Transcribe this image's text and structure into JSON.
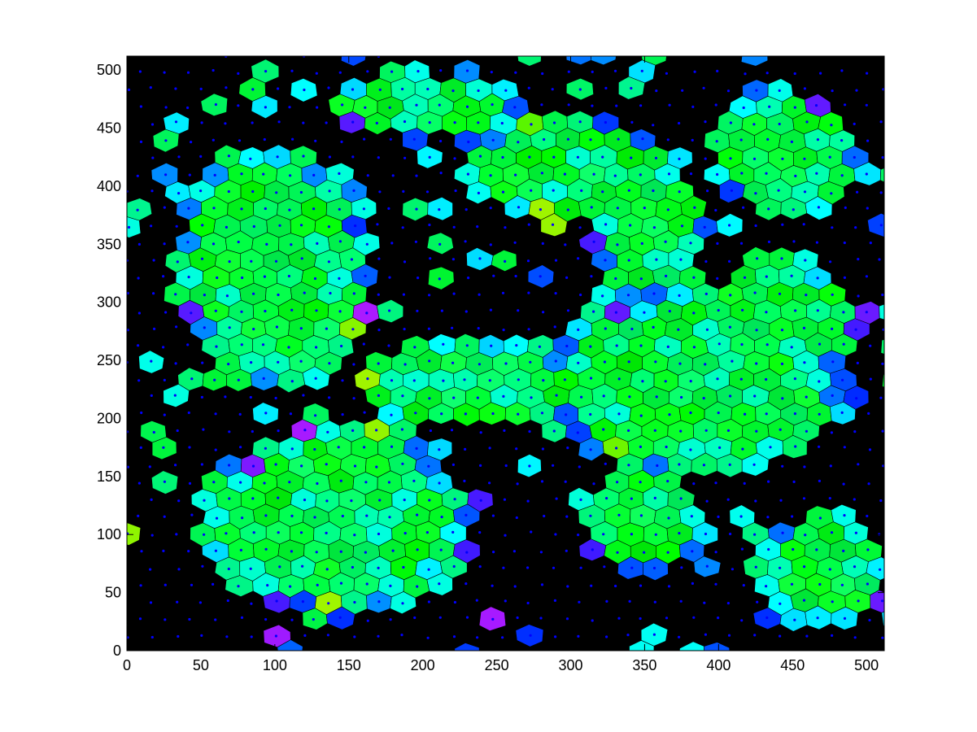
{
  "chart_data": {
    "type": "scatter",
    "subtype": "voronoi-diagram",
    "title": "",
    "xlabel": "",
    "ylabel": "",
    "xlim": [
      0,
      512
    ],
    "ylim": [
      0,
      512
    ],
    "xticks": [
      0,
      50,
      100,
      150,
      200,
      250,
      300,
      350,
      400,
      450,
      500
    ],
    "yticks": [
      0,
      50,
      100,
      150,
      200,
      250,
      300,
      350,
      400,
      450,
      500
    ],
    "grid": false,
    "legend": "none",
    "colors": {
      "background": "#000000",
      "edge": "#000000",
      "seed_marker": "#0000ff",
      "palette_low": "#00ff40",
      "palette_mid": "#00ffff",
      "palette_high": "#ff00ff"
    },
    "cells": {
      "description_of_data": "hexagonal lattice of Voronoi seeds with colour scalar",
      "lattice_spacing": 17,
      "regions": [
        {
          "x": 100,
          "y": 330,
          "rx": 70,
          "ry": 110
        },
        {
          "x": 140,
          "y": 110,
          "rx": 95,
          "ry": 85
        },
        {
          "x": 230,
          "y": 230,
          "rx": 80,
          "ry": 40
        },
        {
          "x": 380,
          "y": 230,
          "rx": 110,
          "ry": 80
        },
        {
          "x": 440,
          "y": 280,
          "rx": 55,
          "ry": 60
        },
        {
          "x": 300,
          "y": 415,
          "rx": 75,
          "ry": 45
        },
        {
          "x": 445,
          "y": 430,
          "rx": 50,
          "ry": 55
        },
        {
          "x": 355,
          "y": 360,
          "rx": 40,
          "ry": 60
        },
        {
          "x": 470,
          "y": 70,
          "rx": 45,
          "ry": 50
        },
        {
          "x": 350,
          "y": 110,
          "rx": 45,
          "ry": 45
        },
        {
          "x": 200,
          "y": 470,
          "rx": 70,
          "ry": 30
        }
      ]
    }
  }
}
